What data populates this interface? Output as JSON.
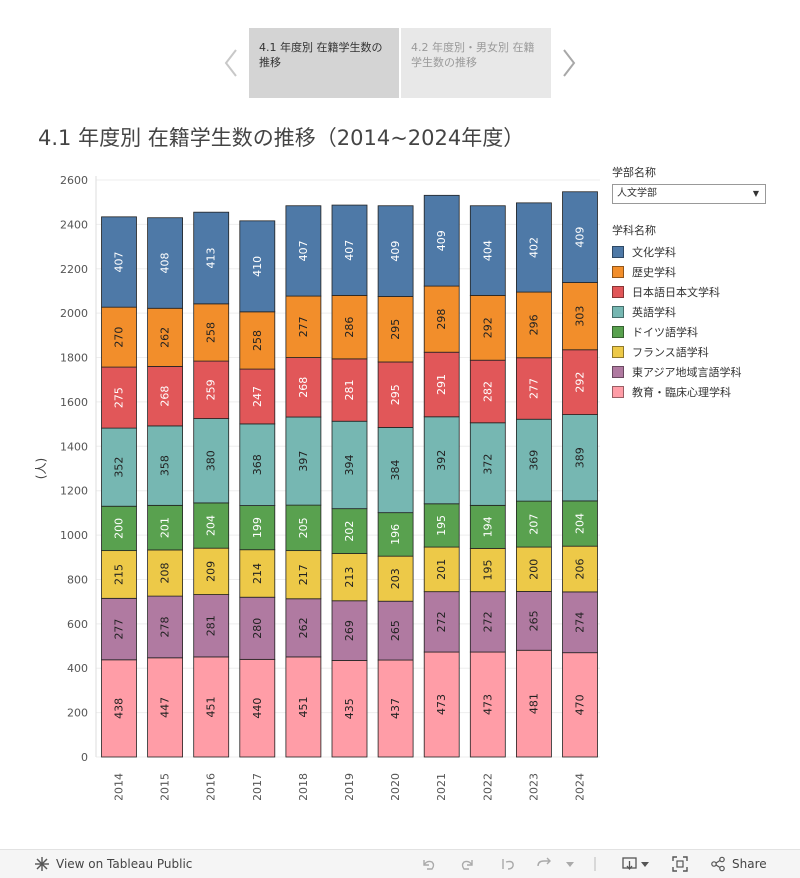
{
  "story": {
    "tabs": [
      {
        "label": "4.1 年度別 在籍学生数の推移"
      },
      {
        "label": "4.2 年度別・男女別 在籍学生数の推移"
      }
    ]
  },
  "title": "4.1 年度別 在籍学生数の推移（2014~2024年度）",
  "filter": {
    "heading": "学部名称",
    "selected": "人文学部"
  },
  "legend": {
    "heading": "学科名称"
  },
  "colors": {
    "文化学科": "#4e79a7",
    "歴史学科": "#f28e2b",
    "日本語日本文学科": "#e15759",
    "英語学科": "#76b7b2",
    "ドイツ語学科": "#59a14f",
    "フランス語学科": "#edc948",
    "東アジア地域言語学科": "#b07aa1",
    "教育・臨床心理学科": "#ff9da7"
  },
  "chart_data": {
    "type": "bar",
    "stacked": true,
    "title": "4.1 年度別 在籍学生数の推移（2014~2024年度）",
    "xlabel": "",
    "ylabel": "(人)",
    "ylim": [
      0,
      2600
    ],
    "yticks": [
      0,
      200,
      400,
      600,
      800,
      1000,
      1200,
      1400,
      1600,
      1800,
      2000,
      2200,
      2400,
      2600
    ],
    "categories": [
      "2014",
      "2015",
      "2016",
      "2017",
      "2018",
      "2019",
      "2020",
      "2021",
      "2022",
      "2023",
      "2024"
    ],
    "series": [
      {
        "name": "教育・臨床心理学科",
        "values": [
          438,
          447,
          451,
          440,
          451,
          435,
          437,
          473,
          473,
          481,
          470
        ]
      },
      {
        "name": "東アジア地域言語学科",
        "values": [
          277,
          278,
          281,
          280,
          262,
          269,
          265,
          272,
          272,
          265,
          274
        ]
      },
      {
        "name": "フランス語学科",
        "values": [
          215,
          208,
          209,
          214,
          217,
          213,
          203,
          201,
          195,
          200,
          206
        ]
      },
      {
        "name": "ドイツ語学科",
        "values": [
          200,
          201,
          204,
          199,
          205,
          202,
          196,
          195,
          194,
          207,
          204
        ]
      },
      {
        "name": "英語学科",
        "values": [
          352,
          358,
          380,
          368,
          397,
          394,
          384,
          392,
          372,
          369,
          389
        ]
      },
      {
        "name": "日本語日本文学科",
        "values": [
          275,
          268,
          259,
          247,
          268,
          281,
          295,
          291,
          282,
          277,
          292
        ]
      },
      {
        "name": "歴史学科",
        "values": [
          270,
          262,
          258,
          258,
          277,
          286,
          295,
          298,
          292,
          296,
          303
        ]
      },
      {
        "name": "文化学科",
        "values": [
          407,
          408,
          413,
          410,
          407,
          407,
          409,
          409,
          404,
          402,
          409
        ]
      }
    ],
    "legend_order": [
      "文化学科",
      "歴史学科",
      "日本語日本文学科",
      "英語学科",
      "ドイツ語学科",
      "フランス語学科",
      "東アジア地域言語学科",
      "教育・臨床心理学科"
    ]
  },
  "toolbar": {
    "view_label": "View on Tableau Public",
    "share_label": "Share"
  }
}
